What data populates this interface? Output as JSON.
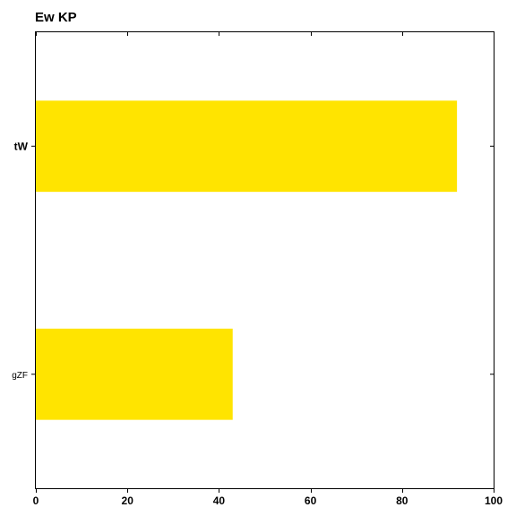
{
  "chart_data": {
    "type": "bar",
    "orientation": "horizontal",
    "title": "Ew KP",
    "xlabel": "",
    "ylabel": "",
    "categories": [
      "tW",
      "gZF"
    ],
    "values": [
      92,
      43
    ],
    "xlim": [
      0,
      100
    ],
    "xticks": [
      0,
      20,
      40,
      60,
      80,
      100
    ],
    "grid": false,
    "legend": "none",
    "bar_color": "#ffe400"
  }
}
